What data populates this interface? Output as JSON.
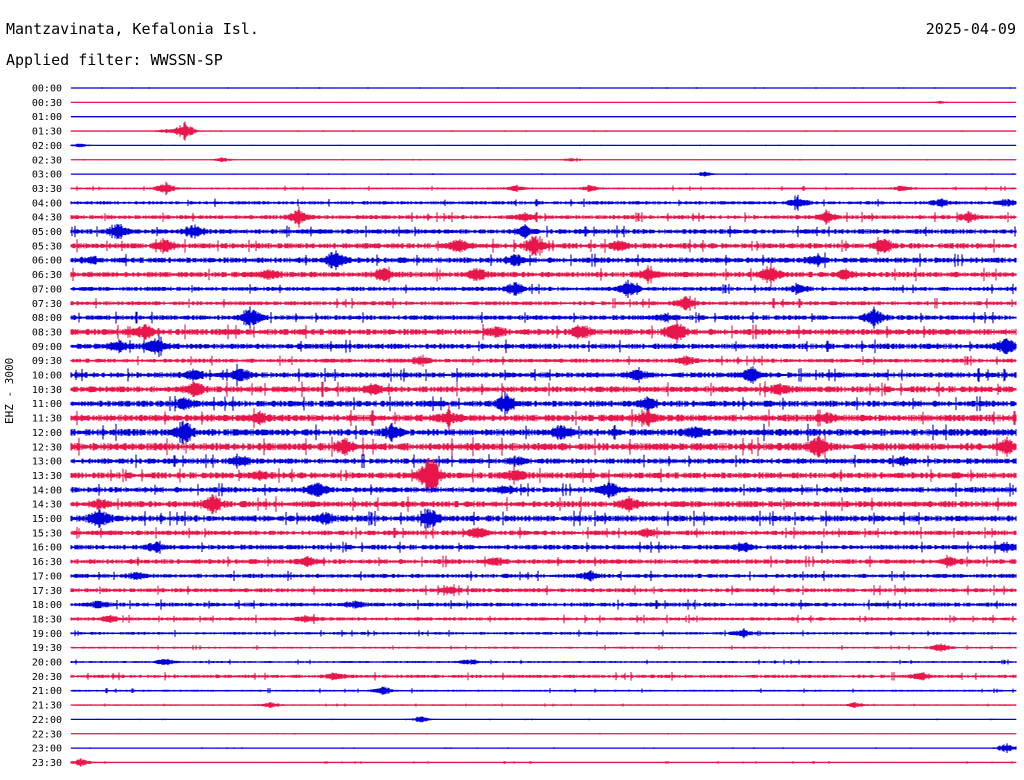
{
  "header": {
    "station": "Mantzavinata, Kefalonia Isl.",
    "date": "2025-04-09",
    "filter": "Applied filter: WWSSN-SP"
  },
  "chart_data": {
    "type": "line",
    "channel_label": "EHZ - 3000",
    "colors": {
      "even_trace": "#0000d8",
      "odd_trace": "#e8164a"
    },
    "rows": [
      {
        "label": "00:00",
        "activity": 0.05,
        "events": []
      },
      {
        "label": "00:30",
        "activity": 0.04,
        "events": [
          [
            0.92,
            0.2
          ]
        ]
      },
      {
        "label": "01:00",
        "activity": 0.04,
        "events": []
      },
      {
        "label": "01:30",
        "activity": 0.05,
        "events": [
          [
            0.12,
            1.5
          ],
          [
            0.1,
            0.3
          ]
        ]
      },
      {
        "label": "02:00",
        "activity": 0.04,
        "events": [
          [
            0.01,
            0.3
          ]
        ]
      },
      {
        "label": "02:30",
        "activity": 0.05,
        "events": [
          [
            0.16,
            0.4
          ],
          [
            0.53,
            0.3
          ]
        ]
      },
      {
        "label": "03:00",
        "activity": 0.05,
        "events": [
          [
            0.67,
            0.4
          ]
        ]
      },
      {
        "label": "03:30",
        "activity": 0.15,
        "events": [
          [
            0.1,
            0.9
          ],
          [
            0.47,
            0.4
          ],
          [
            0.55,
            0.4
          ],
          [
            0.88,
            0.4
          ]
        ]
      },
      {
        "label": "04:00",
        "activity": 0.25,
        "events": [
          [
            0.77,
            0.9
          ],
          [
            0.92,
            0.6
          ],
          [
            0.99,
            0.5
          ]
        ]
      },
      {
        "label": "04:30",
        "activity": 0.3,
        "events": [
          [
            0.24,
            1.0
          ],
          [
            0.48,
            0.5
          ],
          [
            0.8,
            0.8
          ],
          [
            0.95,
            0.7
          ]
        ]
      },
      {
        "label": "05:00",
        "activity": 0.35,
        "events": [
          [
            0.05,
            1.1
          ],
          [
            0.13,
            1.0
          ],
          [
            0.48,
            0.8
          ]
        ]
      },
      {
        "label": "05:30",
        "activity": 0.4,
        "events": [
          [
            0.1,
            0.9
          ],
          [
            0.41,
            1.0
          ],
          [
            0.49,
            1.4
          ],
          [
            0.58,
            0.6
          ],
          [
            0.86,
            1.0
          ]
        ]
      },
      {
        "label": "06:00",
        "activity": 0.4,
        "events": [
          [
            0.28,
            1.4
          ],
          [
            0.47,
            0.8
          ],
          [
            0.79,
            0.7
          ],
          [
            0.02,
            0.5
          ]
        ]
      },
      {
        "label": "06:30",
        "activity": 0.4,
        "events": [
          [
            0.21,
            0.8
          ],
          [
            0.33,
            0.9
          ],
          [
            0.43,
            0.9
          ],
          [
            0.61,
            0.8
          ],
          [
            0.74,
            1.3
          ],
          [
            0.82,
            0.8
          ]
        ]
      },
      {
        "label": "07:00",
        "activity": 0.3,
        "events": [
          [
            0.47,
            1.0
          ],
          [
            0.59,
            1.2
          ],
          [
            0.77,
            0.6
          ]
        ]
      },
      {
        "label": "07:30",
        "activity": 0.3,
        "events": [
          [
            0.65,
            1.0
          ]
        ]
      },
      {
        "label": "08:00",
        "activity": 0.35,
        "events": [
          [
            0.19,
            1.4
          ],
          [
            0.85,
            1.2
          ],
          [
            0.63,
            0.5
          ]
        ]
      },
      {
        "label": "08:30",
        "activity": 0.45,
        "events": [
          [
            0.08,
            1.0
          ],
          [
            0.45,
            0.8
          ],
          [
            0.54,
            1.0
          ],
          [
            0.64,
            1.6
          ]
        ]
      },
      {
        "label": "09:00",
        "activity": 0.4,
        "events": [
          [
            0.05,
            0.8
          ],
          [
            0.09,
            1.2
          ],
          [
            0.99,
            1.1
          ]
        ]
      },
      {
        "label": "09:30",
        "activity": 0.3,
        "events": [
          [
            0.37,
            0.6
          ],
          [
            0.65,
            0.6
          ]
        ]
      },
      {
        "label": "10:00",
        "activity": 0.4,
        "events": [
          [
            0.13,
            0.8
          ],
          [
            0.18,
            1.0
          ],
          [
            0.6,
            0.9
          ],
          [
            0.72,
            1.0
          ]
        ]
      },
      {
        "label": "10:30",
        "activity": 0.45,
        "events": [
          [
            0.13,
            1.0
          ],
          [
            0.32,
            0.7
          ],
          [
            0.75,
            0.8
          ]
        ]
      },
      {
        "label": "11:00",
        "activity": 0.45,
        "events": [
          [
            0.12,
            0.8
          ],
          [
            0.46,
            1.3
          ],
          [
            0.61,
            0.8
          ]
        ]
      },
      {
        "label": "11:30",
        "activity": 0.5,
        "events": [
          [
            0.2,
            0.7
          ],
          [
            0.4,
            0.9
          ],
          [
            0.61,
            1.0
          ],
          [
            0.8,
            0.6
          ]
        ]
      },
      {
        "label": "12:00",
        "activity": 0.5,
        "events": [
          [
            0.12,
            1.7
          ],
          [
            0.34,
            1.0
          ],
          [
            0.52,
            1.0
          ],
          [
            0.66,
            0.7
          ]
        ]
      },
      {
        "label": "12:30",
        "activity": 0.55,
        "events": [
          [
            0.29,
            1.0
          ],
          [
            0.79,
            1.6
          ],
          [
            0.99,
            0.9
          ]
        ]
      },
      {
        "label": "13:00",
        "activity": 0.4,
        "events": [
          [
            0.18,
            0.8
          ],
          [
            0.47,
            0.5
          ],
          [
            0.88,
            0.5
          ]
        ]
      },
      {
        "label": "13:30",
        "activity": 0.45,
        "events": [
          [
            0.38,
            3.5
          ],
          [
            0.47,
            0.8
          ],
          [
            0.2,
            0.6
          ]
        ]
      },
      {
        "label": "14:00",
        "activity": 0.4,
        "events": [
          [
            0.26,
            1.2
          ],
          [
            0.57,
            1.2
          ],
          [
            0.46,
            0.5
          ]
        ]
      },
      {
        "label": "14:30",
        "activity": 0.45,
        "events": [
          [
            0.15,
            1.4
          ],
          [
            0.59,
            1.1
          ],
          [
            0.03,
            0.6
          ]
        ]
      },
      {
        "label": "15:00",
        "activity": 0.45,
        "events": [
          [
            0.03,
            1.3
          ],
          [
            0.27,
            0.7
          ],
          [
            0.38,
            1.4
          ]
        ]
      },
      {
        "label": "15:30",
        "activity": 0.35,
        "events": [
          [
            0.43,
            0.8
          ],
          [
            0.61,
            0.5
          ]
        ]
      },
      {
        "label": "16:00",
        "activity": 0.35,
        "events": [
          [
            0.09,
            0.6
          ],
          [
            0.71,
            0.6
          ],
          [
            0.99,
            0.6
          ]
        ]
      },
      {
        "label": "16:30",
        "activity": 0.35,
        "events": [
          [
            0.25,
            0.6
          ],
          [
            0.45,
            0.5
          ],
          [
            0.93,
            0.5
          ]
        ]
      },
      {
        "label": "17:00",
        "activity": 0.3,
        "events": [
          [
            0.07,
            0.5
          ],
          [
            0.55,
            0.6
          ]
        ]
      },
      {
        "label": "17:30",
        "activity": 0.3,
        "events": [
          [
            0.4,
            0.5
          ]
        ]
      },
      {
        "label": "18:00",
        "activity": 0.3,
        "events": [
          [
            0.03,
            0.5
          ],
          [
            0.3,
            0.5
          ]
        ]
      },
      {
        "label": "18:30",
        "activity": 0.25,
        "events": [
          [
            0.04,
            0.5
          ],
          [
            0.25,
            0.5
          ]
        ]
      },
      {
        "label": "19:00",
        "activity": 0.2,
        "events": [
          [
            0.71,
            0.6
          ]
        ]
      },
      {
        "label": "19:30",
        "activity": 0.15,
        "events": [
          [
            0.92,
            0.6
          ]
        ]
      },
      {
        "label": "20:00",
        "activity": 0.15,
        "events": [
          [
            0.1,
            0.6
          ],
          [
            0.42,
            0.4
          ]
        ]
      },
      {
        "label": "20:30",
        "activity": 0.25,
        "events": [
          [
            0.28,
            0.5
          ],
          [
            0.9,
            0.6
          ]
        ]
      },
      {
        "label": "21:00",
        "activity": 0.15,
        "events": [
          [
            0.33,
            0.6
          ]
        ]
      },
      {
        "label": "21:30",
        "activity": 0.1,
        "events": [
          [
            0.21,
            0.4
          ],
          [
            0.83,
            0.4
          ]
        ]
      },
      {
        "label": "22:00",
        "activity": 0.05,
        "events": [
          [
            0.37,
            0.5
          ]
        ]
      },
      {
        "label": "22:30",
        "activity": 0.05,
        "events": []
      },
      {
        "label": "23:00",
        "activity": 0.05,
        "events": [
          [
            0.99,
            0.8
          ]
        ]
      },
      {
        "label": "23:30",
        "activity": 0.08,
        "events": [
          [
            0.01,
            0.6
          ]
        ]
      }
    ]
  }
}
